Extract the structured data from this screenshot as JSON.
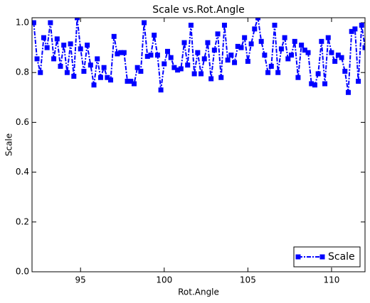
{
  "chart_data": {
    "type": "line",
    "title": "Scale vs.Rot.Angle",
    "xlabel": "Rot.Angle",
    "ylabel": "Scale",
    "x": [
      92.2,
      92.4,
      92.6,
      92.8,
      93.0,
      93.2,
      93.4,
      93.6,
      93.8,
      94.0,
      94.2,
      94.4,
      94.6,
      94.8,
      95.0,
      95.2,
      95.4,
      95.6,
      95.8,
      96.0,
      96.2,
      96.4,
      96.6,
      96.8,
      97.0,
      97.2,
      97.4,
      97.6,
      97.8,
      98.0,
      98.2,
      98.4,
      98.6,
      98.8,
      99.0,
      99.2,
      99.4,
      99.6,
      99.8,
      100.0,
      100.2,
      100.4,
      100.6,
      100.8,
      101.0,
      101.2,
      101.4,
      101.6,
      101.8,
      102.0,
      102.2,
      102.4,
      102.6,
      102.8,
      103.0,
      103.2,
      103.4,
      103.6,
      103.8,
      104.0,
      104.2,
      104.4,
      104.6,
      104.8,
      105.0,
      105.2,
      105.4,
      105.6,
      105.8,
      106.0,
      106.2,
      106.4,
      106.6,
      106.8,
      107.0,
      107.2,
      107.4,
      107.6,
      107.8,
      108.0,
      108.2,
      108.4,
      108.6,
      108.8,
      109.0,
      109.2,
      109.4,
      109.6,
      109.8,
      110.0,
      110.2,
      110.4,
      110.6,
      110.8,
      111.0,
      111.2,
      111.4,
      111.6,
      111.8,
      112.0
    ],
    "series": [
      {
        "name": "Scale",
        "color": "#0000ff",
        "values": [
          1.0,
          0.855,
          0.8,
          0.94,
          0.9,
          1.0,
          0.855,
          0.935,
          0.825,
          0.91,
          0.8,
          0.915,
          0.785,
          1.02,
          0.895,
          0.805,
          0.91,
          0.83,
          0.75,
          0.855,
          0.78,
          0.82,
          0.78,
          0.77,
          0.945,
          0.875,
          0.88,
          0.88,
          0.765,
          0.765,
          0.755,
          0.82,
          0.805,
          1.0,
          0.865,
          0.87,
          0.95,
          0.87,
          0.73,
          0.835,
          0.885,
          0.86,
          0.82,
          0.81,
          0.815,
          0.92,
          0.83,
          0.99,
          0.795,
          0.88,
          0.795,
          0.855,
          0.92,
          0.775,
          0.89,
          0.955,
          0.78,
          0.99,
          0.85,
          0.87,
          0.84,
          0.905,
          0.9,
          0.94,
          0.845,
          0.915,
          0.975,
          1.02,
          0.925,
          0.87,
          0.8,
          0.825,
          0.99,
          0.8,
          0.895,
          0.94,
          0.855,
          0.87,
          0.925,
          0.78,
          0.91,
          0.89,
          0.88,
          0.755,
          0.75,
          0.795,
          0.925,
          0.755,
          0.94,
          0.88,
          0.845,
          0.87,
          0.86,
          0.805,
          0.72,
          0.965,
          0.975,
          0.765,
          0.99,
          0.9
        ]
      }
    ],
    "xlim": [
      92.1,
      112.0
    ],
    "ylim": [
      0,
      1.02
    ],
    "xticks": [
      95,
      100,
      105,
      110
    ],
    "yticks": [
      {
        "value": 0,
        "label": "0.0"
      },
      0.2,
      0.4,
      0.6,
      0.8,
      {
        "value": 1,
        "label": "1.0"
      }
    ],
    "legend": "lower right"
  }
}
